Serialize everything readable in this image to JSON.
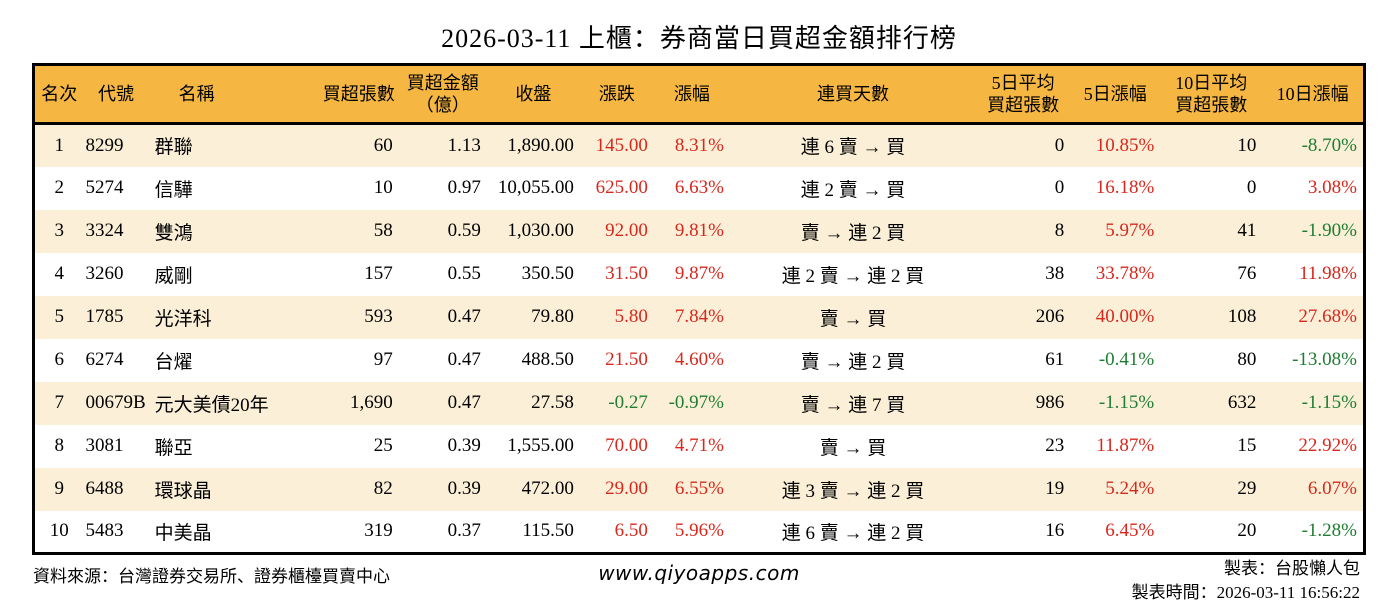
{
  "title": "2026-03-11 上櫃：券商當日買超金額排行榜",
  "table": {
    "headers": [
      "名次",
      "代號",
      "名稱",
      "買超張數",
      "買超金額\n（億）",
      "收盤",
      "漲跌",
      "漲幅",
      "連買天數",
      "5日平均\n買超張數",
      "5日漲幅",
      "10日平均\n買超張數",
      "10日漲幅"
    ],
    "rows": [
      [
        "1",
        "8299",
        "群聯",
        "60",
        "1.13",
        "1,890.00",
        "145.00",
        "8.31%",
        "連 6 賣 → 買",
        "0",
        "10.85%",
        "10",
        "-8.70%"
      ],
      [
        "2",
        "5274",
        "信驊",
        "10",
        "0.97",
        "10,055.00",
        "625.00",
        "6.63%",
        "連 2 賣 → 買",
        "0",
        "16.18%",
        "0",
        "3.08%"
      ],
      [
        "3",
        "3324",
        "雙鴻",
        "58",
        "0.59",
        "1,030.00",
        "92.00",
        "9.81%",
        "賣 → 連 2 買",
        "8",
        "5.97%",
        "41",
        "-1.90%"
      ],
      [
        "4",
        "3260",
        "威剛",
        "157",
        "0.55",
        "350.50",
        "31.50",
        "9.87%",
        "連 2 賣 → 連 2 買",
        "38",
        "33.78%",
        "76",
        "11.98%"
      ],
      [
        "5",
        "1785",
        "光洋科",
        "593",
        "0.47",
        "79.80",
        "5.80",
        "7.84%",
        "賣 → 買",
        "206",
        "40.00%",
        "108",
        "27.68%"
      ],
      [
        "6",
        "6274",
        "台燿",
        "97",
        "0.47",
        "488.50",
        "21.50",
        "4.60%",
        "賣 → 連 2 買",
        "61",
        "-0.41%",
        "80",
        "-13.08%"
      ],
      [
        "7",
        "00679B",
        "元大美債20年",
        "1,690",
        "0.47",
        "27.58",
        "-0.27",
        "-0.97%",
        "賣 → 連 7 買",
        "986",
        "-1.15%",
        "632",
        "-1.15%"
      ],
      [
        "8",
        "3081",
        "聯亞",
        "25",
        "0.39",
        "1,555.00",
        "70.00",
        "4.71%",
        "賣 → 買",
        "23",
        "11.87%",
        "15",
        "22.92%"
      ],
      [
        "9",
        "6488",
        "環球晶",
        "82",
        "0.39",
        "472.00",
        "29.00",
        "6.55%",
        "連 3 賣 → 連 2 買",
        "19",
        "5.24%",
        "29",
        "6.07%"
      ],
      [
        "10",
        "5483",
        "中美晶",
        "319",
        "0.37",
        "115.50",
        "6.50",
        "5.96%",
        "連 6 賣 → 連 2 買",
        "16",
        "6.45%",
        "20",
        "-1.28%"
      ]
    ]
  },
  "footer": {
    "source": "資料來源：台灣證券交易所、證券櫃檯買賣中心",
    "website": "www.qiyoapps.com",
    "maker": "製表：台股懶人包",
    "made_at": "製表時間：2026-03-11 16:56:22"
  },
  "colors": {
    "header_bg": "#F5B642",
    "row_alt_bg": "#FBF0D7",
    "up_red": "#D7281D",
    "down_green": "#1E7D32",
    "border": "#000000"
  }
}
